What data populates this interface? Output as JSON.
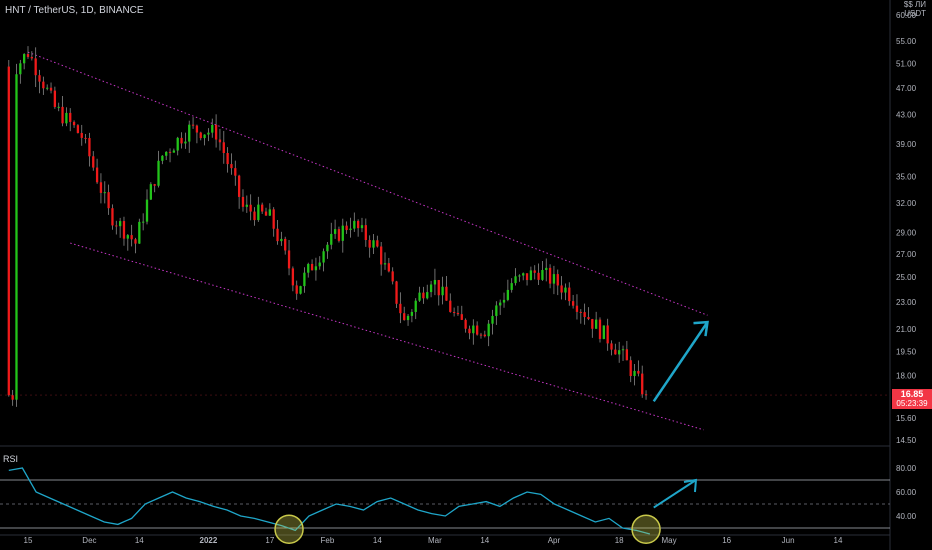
{
  "header": {
    "title": "HNT / TetherUS, 1D, BINANCE"
  },
  "price_axis": {
    "currency_top": "$$ ЛИ",
    "currency": "USDT"
  },
  "rsi_panel": {
    "label": "RSI"
  },
  "last_price": {
    "value": "16.85",
    "countdown": "05:23:39"
  },
  "colors": {
    "background": "#000000",
    "up_candle": "#26a69a",
    "bullish": "#22c41a",
    "bearish": "#f01a1a",
    "channel": "#c636c6",
    "arrow": "#1fa6c9",
    "rsi_line": "#1fa6c9",
    "highlight": "#c9c94a"
  },
  "chart_data": [
    {
      "type": "candlestick",
      "title": "HNT / TetherUS, 1D, BINANCE",
      "y_scale": "log",
      "y_ticks": [
        "60.00",
        "55.00",
        "51.00",
        "47.00",
        "43.00",
        "39.00",
        "35.00",
        "32.00",
        "29.00",
        "27.00",
        "25.00",
        "23.00",
        "21.00",
        "19.50",
        "18.00",
        "15.60",
        "14.50"
      ],
      "x_ticks": [
        "15",
        "Dec",
        "14",
        "2022",
        "17",
        "Feb",
        "14",
        "Mar",
        "14",
        "Apr",
        "18",
        "May",
        "16",
        "Jun",
        "14"
      ],
      "approx_daily_closes": [
        {
          "date": "2021-11-12",
          "close": 50.5
        },
        {
          "date": "2021-11-15",
          "close": 53.0
        },
        {
          "date": "2021-11-22",
          "close": 44.0
        },
        {
          "date": "2021-11-29",
          "close": 40.0
        },
        {
          "date": "2021-12-06",
          "close": 31.0
        },
        {
          "date": "2021-12-13",
          "close": 28.0
        },
        {
          "date": "2021-12-20",
          "close": 37.5
        },
        {
          "date": "2021-12-27",
          "close": 41.0
        },
        {
          "date": "2022-01-03",
          "close": 40.5
        },
        {
          "date": "2022-01-10",
          "close": 31.5
        },
        {
          "date": "2022-01-17",
          "close": 30.5
        },
        {
          "date": "2022-01-24",
          "close": 24.0
        },
        {
          "date": "2022-01-31",
          "close": 27.5
        },
        {
          "date": "2022-02-07",
          "close": 30.0
        },
        {
          "date": "2022-02-14",
          "close": 27.5
        },
        {
          "date": "2022-02-21",
          "close": 21.5
        },
        {
          "date": "2022-02-28",
          "close": 25.0
        },
        {
          "date": "2022-03-07",
          "close": 21.5
        },
        {
          "date": "2022-03-14",
          "close": 21.0
        },
        {
          "date": "2022-03-21",
          "close": 24.5
        },
        {
          "date": "2022-03-28",
          "close": 25.5
        },
        {
          "date": "2022-04-04",
          "close": 24.0
        },
        {
          "date": "2022-04-11",
          "close": 21.5
        },
        {
          "date": "2022-04-18",
          "close": 19.5
        },
        {
          "date": "2022-04-25",
          "close": 16.85
        }
      ],
      "annotations": [
        {
          "type": "channel_upper",
          "from": {
            "date": "2021-11-15",
            "price": 53.0
          },
          "to": {
            "date": "2022-05-11",
            "price": 22.0
          }
        },
        {
          "type": "channel_lower",
          "from": {
            "date": "2021-11-26",
            "price": 28.0
          },
          "to": {
            "date": "2022-05-10",
            "price": 15.0
          }
        },
        {
          "type": "arrow",
          "from": {
            "date": "2022-04-27",
            "price": 16.5
          },
          "to": {
            "date": "2022-05-11",
            "price": 21.5
          }
        }
      ],
      "last_price": 16.85
    },
    {
      "type": "line",
      "title": "RSI",
      "y_ticks": [
        "80.00",
        "60.00",
        "40.00"
      ],
      "levels": [
        70,
        30
      ],
      "midline": 50,
      "approx_values": [
        78,
        80,
        60,
        55,
        50,
        45,
        40,
        35,
        33,
        38,
        50,
        55,
        60,
        55,
        52,
        48,
        45,
        40,
        38,
        35,
        32,
        28,
        40,
        45,
        50,
        48,
        45,
        52,
        55,
        50,
        45,
        42,
        40,
        48,
        50,
        52,
        48,
        55,
        60,
        58,
        50,
        45,
        40,
        35,
        38,
        30,
        28,
        25
      ],
      "highlights": [
        "2022-01-22",
        "2022-04-25"
      ]
    }
  ]
}
